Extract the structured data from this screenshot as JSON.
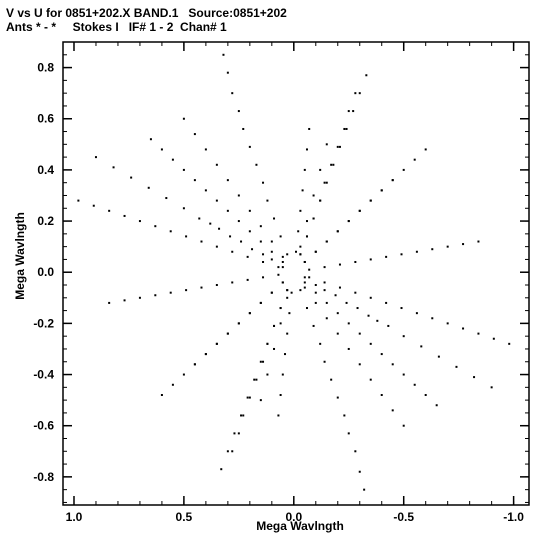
{
  "header": {
    "line1": "V vs U for 0851+202.X BAND.1   Source:0851+202",
    "line2": "Ants * - *     Stokes I   IF# 1 - 2  Chan# 1"
  },
  "chart_data": {
    "type": "scatter",
    "title": "V vs U for 0851+202.X BAND.1   Source:0851+202",
    "subtitle": "Ants * - *     Stokes I   IF# 1 - 2  Chan# 1",
    "xlabel": "Mega Wavlngth",
    "ylabel": "Mega Wavlngth",
    "xlim": [
      1.05,
      -1.07
    ],
    "ylim": [
      -0.91,
      0.9
    ],
    "x_reversed": true,
    "x_ticks": [
      1.0,
      0.5,
      0.0,
      -0.5,
      -1.0
    ],
    "x_tick_labels": [
      "1.0",
      "0.5",
      "0.0",
      "-0.5",
      "-1.0"
    ],
    "y_ticks": [
      0.8,
      0.6,
      0.4,
      0.2,
      0.0,
      -0.2,
      -0.4,
      -0.6,
      -0.8
    ],
    "y_tick_labels": [
      "0.8",
      "0.6",
      "0.4",
      "0.2",
      "0.0",
      "-0.2",
      "-0.4",
      "-0.6",
      "-0.8"
    ],
    "grid": false,
    "point_color": "#000000",
    "arm_directions_uv": [
      [
        0.38,
        0.85
      ],
      [
        0.06,
        0.58
      ],
      [
        -0.62,
        0.74
      ],
      [
        -0.5,
        0.2
      ],
      [
        0.95,
        0.12
      ],
      [
        0.54,
        -0.4
      ]
    ],
    "arm_max_radius": 0.92,
    "series": [
      {
        "points": [
          [
            0.05,
            0.02
          ],
          [
            0.1,
            0.05
          ],
          [
            0.14,
            0.07
          ],
          [
            0.19,
            0.09
          ],
          [
            0.24,
            0.12
          ],
          [
            0.29,
            0.14
          ],
          [
            0.34,
            0.17
          ],
          [
            0.38,
            0.19
          ],
          [
            0.43,
            0.21
          ],
          [
            0.5,
            0.25
          ],
          [
            0.58,
            0.29
          ],
          [
            0.66,
            0.33
          ],
          [
            0.74,
            0.37
          ],
          [
            0.82,
            0.41
          ],
          [
            0.9,
            0.45
          ],
          [
            0.05,
            0.06
          ],
          [
            0.1,
            0.12
          ],
          [
            0.15,
            0.18
          ],
          [
            0.2,
            0.24
          ],
          [
            0.25,
            0.3
          ],
          [
            0.3,
            0.36
          ],
          [
            0.35,
            0.42
          ],
          [
            0.4,
            0.48
          ],
          [
            0.45,
            0.54
          ],
          [
            0.5,
            0.6
          ],
          [
            -0.03,
            0.1
          ],
          [
            -0.06,
            0.2
          ],
          [
            -0.09,
            0.3
          ],
          [
            -0.12,
            0.4
          ],
          [
            -0.15,
            0.5
          ],
          [
            -0.03,
            0.07
          ],
          [
            -0.06,
            0.14
          ],
          [
            -0.09,
            0.21
          ],
          [
            -0.12,
            0.28
          ],
          [
            -0.14,
            0.35
          ],
          [
            -0.17,
            0.42
          ],
          [
            -0.2,
            0.49
          ],
          [
            -0.23,
            0.56
          ],
          [
            -0.25,
            0.63
          ],
          [
            -0.28,
            0.7
          ],
          [
            -0.05,
            0.04
          ],
          [
            -0.1,
            0.08
          ],
          [
            -0.15,
            0.12
          ],
          [
            -0.2,
            0.16
          ],
          [
            -0.25,
            0.2
          ],
          [
            -0.3,
            0.24
          ],
          [
            -0.35,
            0.28
          ],
          [
            -0.4,
            0.32
          ],
          [
            -0.45,
            0.36
          ],
          [
            -0.5,
            0.4
          ],
          [
            -0.55,
            0.44
          ],
          [
            -0.6,
            0.48
          ],
          [
            -0.07,
            0.01
          ],
          [
            -0.14,
            0.02
          ],
          [
            -0.21,
            0.03
          ],
          [
            -0.28,
            0.04
          ],
          [
            -0.35,
            0.05
          ],
          [
            -0.42,
            0.06
          ],
          [
            -0.49,
            0.07
          ],
          [
            -0.56,
            0.08
          ],
          [
            -0.63,
            0.09
          ],
          [
            -0.7,
            0.1
          ],
          [
            -0.77,
            0.11
          ],
          [
            -0.84,
            0.12
          ],
          [
            -0.05,
            -0.04
          ],
          [
            -0.1,
            -0.08
          ],
          [
            -0.15,
            -0.12
          ],
          [
            -0.2,
            -0.16
          ],
          [
            -0.25,
            -0.2
          ],
          [
            -0.3,
            -0.24
          ],
          [
            -0.35,
            -0.28
          ],
          [
            -0.4,
            -0.32
          ],
          [
            -0.45,
            -0.36
          ],
          [
            -0.5,
            -0.4
          ],
          [
            -0.55,
            -0.44
          ],
          [
            -0.6,
            -0.48
          ],
          [
            -0.65,
            -0.52
          ],
          [
            -0.03,
            -0.07
          ],
          [
            -0.06,
            -0.14
          ],
          [
            -0.09,
            -0.21
          ],
          [
            -0.12,
            -0.28
          ],
          [
            -0.14,
            -0.35
          ],
          [
            -0.17,
            -0.42
          ],
          [
            -0.2,
            -0.49
          ],
          [
            -0.23,
            -0.56
          ],
          [
            -0.25,
            -0.63
          ],
          [
            -0.28,
            -0.7
          ],
          [
            -0.3,
            -0.78
          ],
          [
            -0.32,
            -0.85
          ],
          [
            0.01,
            -0.08
          ],
          [
            0.02,
            -0.16
          ],
          [
            0.03,
            -0.24
          ],
          [
            0.04,
            -0.32
          ],
          [
            0.05,
            -0.4
          ],
          [
            0.06,
            -0.48
          ],
          [
            0.07,
            -0.56
          ],
          [
            0.03,
            -0.07
          ],
          [
            0.06,
            -0.14
          ],
          [
            0.09,
            -0.21
          ],
          [
            0.12,
            -0.28
          ],
          [
            0.15,
            -0.35
          ],
          [
            0.18,
            -0.42
          ],
          [
            0.21,
            -0.49
          ],
          [
            0.24,
            -0.56
          ],
          [
            0.27,
            -0.63
          ],
          [
            0.3,
            -0.7
          ],
          [
            0.33,
            -0.77
          ],
          [
            0.05,
            -0.04
          ],
          [
            0.1,
            -0.08
          ],
          [
            0.15,
            -0.12
          ],
          [
            0.2,
            -0.16
          ],
          [
            0.25,
            -0.2
          ],
          [
            0.3,
            -0.24
          ],
          [
            0.35,
            -0.28
          ],
          [
            0.4,
            -0.32
          ],
          [
            0.45,
            -0.36
          ],
          [
            0.07,
            0.02
          ],
          [
            0.14,
            0.04
          ],
          [
            0.21,
            0.06
          ],
          [
            0.28,
            0.08
          ],
          [
            0.35,
            0.1
          ],
          [
            0.42,
            0.12
          ],
          [
            0.49,
            0.14
          ],
          [
            0.56,
            0.16
          ],
          [
            0.63,
            0.18
          ],
          [
            0.7,
            0.2
          ],
          [
            0.77,
            0.22
          ],
          [
            0.84,
            0.24
          ],
          [
            0.91,
            0.26
          ],
          [
            0.98,
            0.28
          ]
        ]
      }
    ]
  }
}
